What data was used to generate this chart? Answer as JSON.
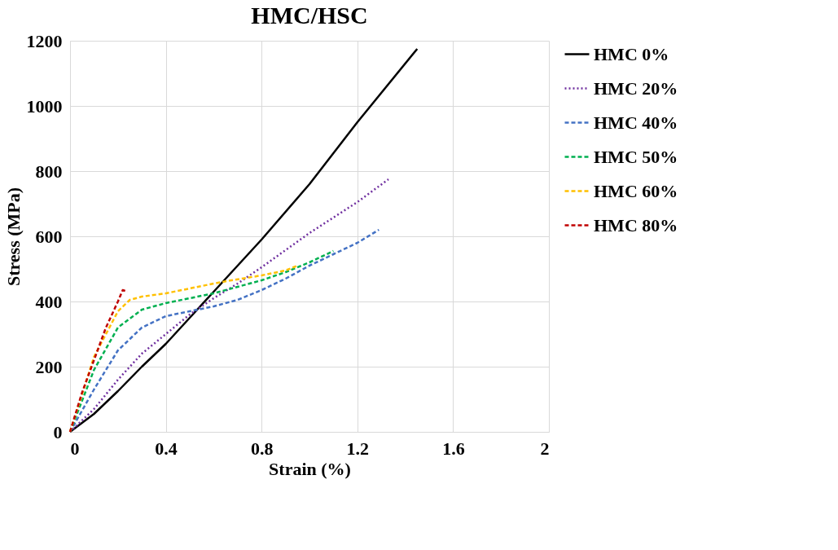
{
  "chart_data": {
    "type": "line",
    "title": "HMC/HSC",
    "xlabel": "Strain (%)",
    "ylabel": "Stress (MPa)",
    "xlim": [
      0,
      2
    ],
    "xticks": [
      0,
      0.4,
      0.8,
      1.2,
      1.6,
      2
    ],
    "ylim": [
      0,
      1200
    ],
    "yticks": [
      0,
      200,
      400,
      600,
      800,
      1000,
      1200
    ],
    "grid": true,
    "legend": "right",
    "marker": "none",
    "series": [
      {
        "name": "HMC 0%",
        "color": "#000000",
        "line_style": "solid",
        "x": [
          0,
          0.1,
          0.2,
          0.3,
          0.4,
          0.5,
          0.6,
          0.8,
          1.0,
          1.2,
          1.45
        ],
        "values": [
          0,
          55,
          125,
          200,
          270,
          350,
          430,
          590,
          760,
          950,
          1175
        ]
      },
      {
        "name": "HMC 20%",
        "color": "#7030a0",
        "line_style": "dotted",
        "x": [
          0,
          0.1,
          0.2,
          0.3,
          0.4,
          0.5,
          0.6,
          0.7,
          0.8,
          1.0,
          1.2,
          1.33
        ],
        "values": [
          0,
          70,
          160,
          240,
          300,
          360,
          410,
          455,
          505,
          610,
          705,
          775
        ]
      },
      {
        "name": "HMC 40%",
        "color": "#4472c4",
        "line_style": "dashed",
        "x": [
          0,
          0.1,
          0.2,
          0.3,
          0.4,
          0.5,
          0.6,
          0.7,
          0.8,
          0.9,
          1.0,
          1.1,
          1.2,
          1.29
        ],
        "values": [
          0,
          130,
          250,
          320,
          355,
          370,
          385,
          405,
          435,
          470,
          510,
          545,
          580,
          620
        ]
      },
      {
        "name": "HMC 50%",
        "color": "#00b050",
        "line_style": "dashed",
        "x": [
          0,
          0.1,
          0.2,
          0.3,
          0.4,
          0.5,
          0.6,
          0.7,
          0.8,
          0.9,
          1.0,
          1.1
        ],
        "values": [
          0,
          190,
          320,
          375,
          395,
          410,
          425,
          445,
          465,
          490,
          520,
          555
        ]
      },
      {
        "name": "HMC 60%",
        "color": "#ffc000",
        "line_style": "dashed",
        "x": [
          0,
          0.1,
          0.2,
          0.25,
          0.3,
          0.4,
          0.5,
          0.6,
          0.65,
          0.8,
          0.9,
          0.95
        ],
        "values": [
          0,
          230,
          370,
          405,
          415,
          425,
          440,
          455,
          462,
          480,
          495,
          510
        ]
      },
      {
        "name": "HMC 80%",
        "color": "#c00000",
        "line_style": "dashed",
        "x": [
          0,
          0.05,
          0.1,
          0.15,
          0.2,
          0.22,
          0.24
        ],
        "values": [
          0,
          120,
          220,
          320,
          400,
          435,
          430
        ]
      }
    ]
  }
}
